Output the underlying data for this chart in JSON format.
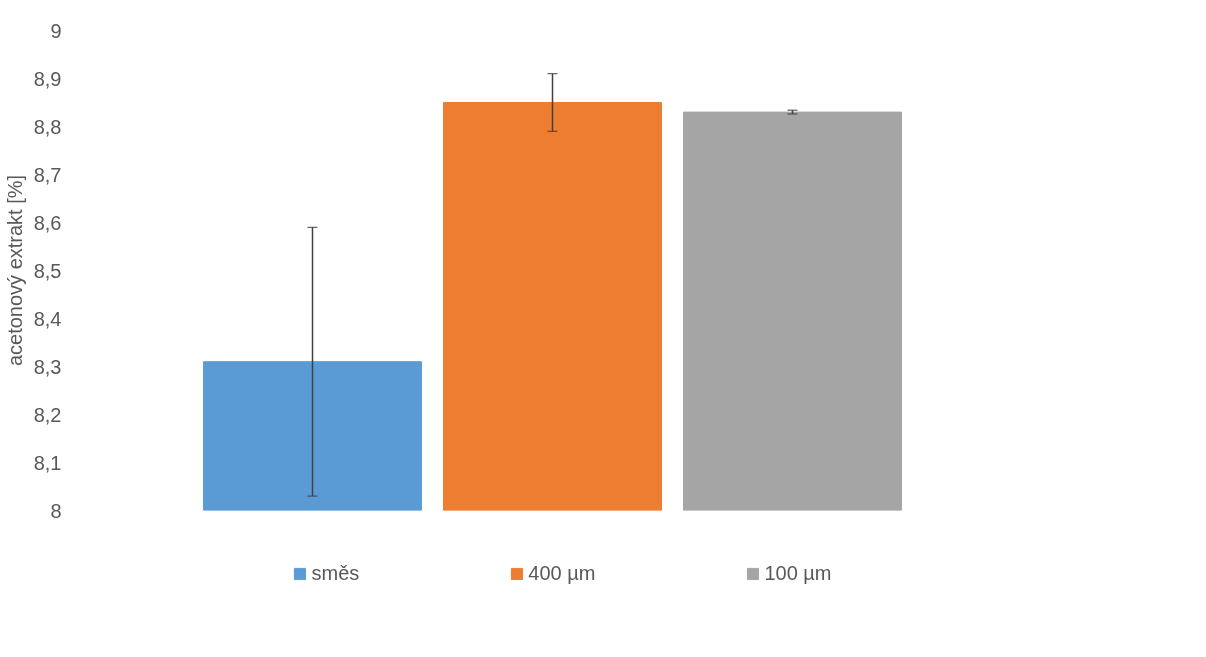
{
  "chart_data": {
    "type": "bar",
    "ylabel": "acetonový extrakt [%]",
    "categories": [
      null
    ],
    "series": [
      {
        "name": "směs",
        "color": "#5b9bd5",
        "values": [
          8.31
        ],
        "errors": [
          0.28
        ]
      },
      {
        "name": "400 µm",
        "color": "#ed7d31",
        "values": [
          8.85
        ],
        "errors": [
          0.06
        ]
      },
      {
        "name": "100 µm",
        "color": "#a5a5a5",
        "values": [
          8.83
        ],
        "errors": [
          0.004
        ]
      }
    ],
    "ylim": [
      8,
      9
    ],
    "yticks": [
      8,
      {
        "value": 8.1,
        "label": "8,1"
      },
      {
        "value": 8.2,
        "label": "8,2"
      },
      {
        "value": 8.3,
        "label": "8,3"
      },
      {
        "value": 8.4,
        "label": "8,4"
      },
      {
        "value": 8.5,
        "label": "8,5"
      },
      {
        "value": 8.6,
        "label": "8,6"
      },
      {
        "value": 8.7,
        "label": "8,7"
      },
      {
        "value": 8.8,
        "label": "8,8"
      },
      {
        "value": 8.9,
        "label": "8,9"
      },
      9
    ],
    "grid": false,
    "legend": "bottom"
  }
}
